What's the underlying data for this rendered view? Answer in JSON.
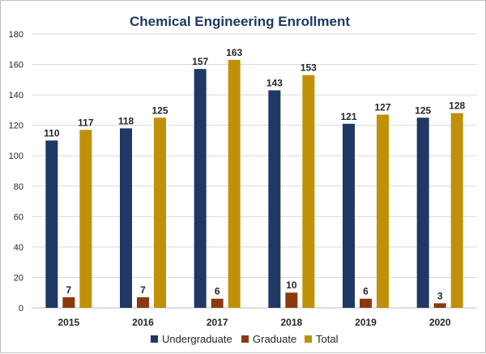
{
  "chart_data": {
    "type": "bar",
    "title": "Chemical Engineering Enrollment",
    "xlabel": "",
    "ylabel": "",
    "categories": [
      "2015",
      "2016",
      "2017",
      "2018",
      "2019",
      "2020"
    ],
    "ylim": [
      0,
      180
    ],
    "yticks": [
      0,
      20,
      40,
      60,
      80,
      100,
      120,
      140,
      160,
      180
    ],
    "grid": true,
    "legend_position": "bottom",
    "series": [
      {
        "name": "Undergraduate",
        "color": "#1f3864",
        "values": [
          110,
          118,
          157,
          143,
          121,
          125
        ]
      },
      {
        "name": "Graduate",
        "color": "#8b3a0e",
        "values": [
          7,
          7,
          6,
          10,
          6,
          3
        ]
      },
      {
        "name": "Total",
        "color": "#c09108",
        "values": [
          117,
          125,
          163,
          153,
          127,
          128
        ]
      }
    ]
  }
}
